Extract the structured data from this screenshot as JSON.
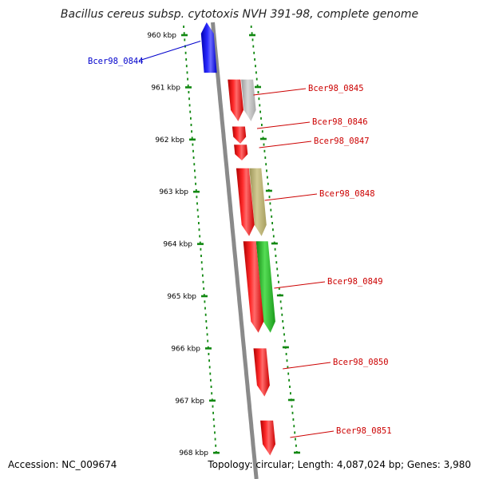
{
  "title": "Bacillus cereus subsp. cytotoxis NVH 391-98, complete genome",
  "footer": {
    "accession": "Accession: NC_009674",
    "topology": "Topology: circular; Length: 4,087,024 bp; Genes: 3,980"
  },
  "ticks": [
    {
      "kb": 960,
      "label": "960 kbp"
    },
    {
      "kb": 961,
      "label": "961 kbp"
    },
    {
      "kb": 962,
      "label": "962 kbp"
    },
    {
      "kb": 963,
      "label": "963 kbp"
    },
    {
      "kb": 964,
      "label": "964 kbp"
    },
    {
      "kb": 965,
      "label": "965 kbp"
    },
    {
      "kb": 966,
      "label": "966 kbp"
    },
    {
      "kb": 967,
      "label": "967 kbp"
    },
    {
      "kb": 968,
      "label": "968 kbp"
    }
  ],
  "genes": [
    {
      "name": "Bcer98_0844",
      "start_kb": 959.55,
      "end_kb": 960.72,
      "strand": "-",
      "color": "#0000ff"
    },
    {
      "name": "Bcer98_0845",
      "start_kb": 960.85,
      "end_kb": 961.65,
      "strand": "+",
      "color": "#ff0000"
    },
    {
      "name": "Bcer98_0846",
      "start_kb": 961.75,
      "end_kb": 962.08,
      "strand": "+",
      "color": "#ff0000"
    },
    {
      "name": "Bcer98_0847",
      "start_kb": 962.1,
      "end_kb": 962.4,
      "strand": "+",
      "color": "#ff0000"
    },
    {
      "name": "Bcer98_0848",
      "start_kb": 962.55,
      "end_kb": 963.85,
      "strand": "+",
      "color": "#ff0000"
    },
    {
      "name": "Bcer98_0849",
      "start_kb": 963.95,
      "end_kb": 965.7,
      "strand": "+",
      "color": "#ff0000"
    },
    {
      "name": "Bcer98_0850",
      "start_kb": 966.0,
      "end_kb": 966.92,
      "strand": "+",
      "color": "#ff0000"
    },
    {
      "name": "Bcer98_0851",
      "start_kb": 967.38,
      "end_kb": 968.05,
      "strand": "+",
      "color": "#ff0000"
    }
  ],
  "features": [
    {
      "start_kb": 960.85,
      "end_kb": 961.65,
      "strand": "+",
      "color": "#b4b4b4"
    },
    {
      "start_kb": 962.55,
      "end_kb": 963.85,
      "strand": "+",
      "color": "#b8b070"
    },
    {
      "start_kb": 963.95,
      "end_kb": 965.7,
      "strand": "+",
      "color": "#22aa22"
    }
  ]
}
